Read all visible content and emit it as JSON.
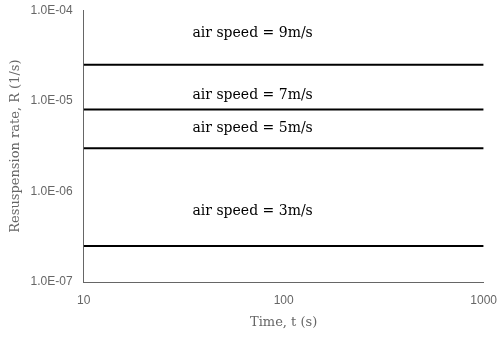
{
  "chart_data": {
    "type": "line",
    "x": [
      10,
      1000
    ],
    "series": [
      {
        "color": "#000000",
        "values": [
          2.5e-05,
          2.5e-05
        ]
      },
      {
        "color": "#000000",
        "values": [
          8e-06,
          8e-06
        ]
      },
      {
        "color": "#000000",
        "values": [
          3e-06,
          3e-06
        ]
      },
      {
        "color": "#000000",
        "values": [
          2.5e-07,
          2.5e-07
        ]
      }
    ],
    "annotations": [
      {
        "text": "air speed = 9m/s",
        "x": 35,
        "y": 5.5e-05
      },
      {
        "text": "air speed = 7m/s",
        "x": 35,
        "y": 1.15e-05
      },
      {
        "text": "air speed = 5m/s",
        "x": 35,
        "y": 5e-06
      },
      {
        "text": "air speed = 3m/s",
        "x": 35,
        "y": 6e-07
      }
    ],
    "color": "#000000",
    "xlabel": "Time, t (s)",
    "ylabel": "Resuspension rate, R (1/s)",
    "log": true,
    "xlim": [
      10,
      1000
    ],
    "ylim": [
      1e-07,
      0.0001
    ],
    "xticks": [
      10,
      100,
      1000
    ],
    "yticks": [
      {
        "value": 1e-07,
        "label": "1.0E-07"
      },
      {
        "value": 1e-06,
        "label": "1.0E-06"
      },
      {
        "value": 1e-05,
        "label": "1.0E-05"
      },
      {
        "value": 0.0001,
        "label": "1.0E-04"
      }
    ],
    "grid": false,
    "legend": false
  }
}
